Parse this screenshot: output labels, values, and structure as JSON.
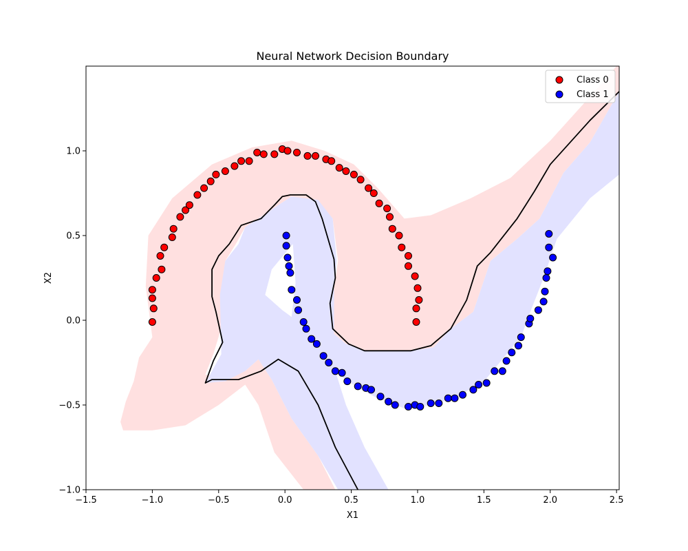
{
  "chart_data": {
    "type": "scatter",
    "title": "Neural Network Decision Boundary",
    "xlabel": "X1",
    "ylabel": "X2",
    "xlim": [
      -1.5,
      2.52
    ],
    "ylim": [
      -1.0,
      1.5
    ],
    "x_ticks": [
      -1.5,
      -1.0,
      -0.5,
      0.0,
      0.5,
      1.0,
      1.5,
      2.0,
      2.5
    ],
    "y_ticks": [
      -1.0,
      -0.5,
      0.0,
      0.5,
      1.0
    ],
    "x_tick_labels": [
      "−1.5",
      "−1.0",
      "−0.5",
      "0.0",
      "0.5",
      "1.0",
      "1.5",
      "2.0",
      "2.5"
    ],
    "y_tick_labels": [
      "−1.0",
      "−0.5",
      "0.0",
      "0.5",
      "1.0"
    ],
    "grid": false,
    "legend_position": "top-right",
    "series": [
      {
        "name": "Class 0",
        "color": "#ff0000",
        "points": [
          [
            -1.0,
            -0.01
          ],
          [
            -0.99,
            0.07
          ],
          [
            -1.0,
            0.13
          ],
          [
            -1.0,
            0.18
          ],
          [
            -0.93,
            0.3
          ],
          [
            -0.97,
            0.25
          ],
          [
            -0.94,
            0.38
          ],
          [
            -0.91,
            0.43
          ],
          [
            -0.85,
            0.49
          ],
          [
            -0.84,
            0.54
          ],
          [
            -0.79,
            0.61
          ],
          [
            -0.75,
            0.65
          ],
          [
            -0.72,
            0.68
          ],
          [
            -0.66,
            0.74
          ],
          [
            -0.61,
            0.78
          ],
          [
            -0.56,
            0.82
          ],
          [
            -0.52,
            0.86
          ],
          [
            -0.45,
            0.88
          ],
          [
            -0.38,
            0.91
          ],
          [
            -0.33,
            0.94
          ],
          [
            -0.27,
            0.94
          ],
          [
            -0.21,
            0.99
          ],
          [
            -0.16,
            0.98
          ],
          [
            -0.08,
            0.98
          ],
          [
            -0.02,
            1.01
          ],
          [
            0.02,
            1.0
          ],
          [
            0.09,
            0.99
          ],
          [
            0.17,
            0.97
          ],
          [
            0.23,
            0.97
          ],
          [
            0.31,
            0.95
          ],
          [
            0.35,
            0.94
          ],
          [
            0.41,
            0.9
          ],
          [
            0.46,
            0.88
          ],
          [
            0.52,
            0.86
          ],
          [
            0.57,
            0.83
          ],
          [
            0.63,
            0.78
          ],
          [
            0.67,
            0.75
          ],
          [
            0.71,
            0.69
          ],
          [
            0.77,
            0.66
          ],
          [
            0.79,
            0.61
          ],
          [
            0.81,
            0.54
          ],
          [
            0.86,
            0.5
          ],
          [
            0.88,
            0.43
          ],
          [
            0.93,
            0.38
          ],
          [
            0.93,
            0.32
          ],
          [
            0.98,
            0.26
          ],
          [
            1.0,
            0.19
          ],
          [
            1.01,
            0.12
          ],
          [
            0.99,
            0.07
          ],
          [
            0.99,
            -0.01
          ]
        ]
      },
      {
        "name": "Class 1",
        "color": "#0000ff",
        "points": [
          [
            0.01,
            0.5
          ],
          [
            0.01,
            0.44
          ],
          [
            0.02,
            0.37
          ],
          [
            0.03,
            0.32
          ],
          [
            0.04,
            0.28
          ],
          [
            0.05,
            0.18
          ],
          [
            0.09,
            0.12
          ],
          [
            0.1,
            0.06
          ],
          [
            0.14,
            -0.01
          ],
          [
            0.16,
            -0.05
          ],
          [
            0.2,
            -0.11
          ],
          [
            0.24,
            -0.14
          ],
          [
            0.29,
            -0.21
          ],
          [
            0.33,
            -0.25
          ],
          [
            0.38,
            -0.3
          ],
          [
            0.43,
            -0.31
          ],
          [
            0.47,
            -0.36
          ],
          [
            0.55,
            -0.39
          ],
          [
            0.61,
            -0.4
          ],
          [
            0.65,
            -0.41
          ],
          [
            0.72,
            -0.45
          ],
          [
            0.78,
            -0.48
          ],
          [
            0.83,
            -0.5
          ],
          [
            0.93,
            -0.51
          ],
          [
            0.98,
            -0.5
          ],
          [
            1.02,
            -0.51
          ],
          [
            1.1,
            -0.49
          ],
          [
            1.16,
            -0.49
          ],
          [
            1.23,
            -0.46
          ],
          [
            1.28,
            -0.46
          ],
          [
            1.34,
            -0.44
          ],
          [
            1.42,
            -0.41
          ],
          [
            1.46,
            -0.38
          ],
          [
            1.52,
            -0.37
          ],
          [
            1.58,
            -0.3
          ],
          [
            1.64,
            -0.3
          ],
          [
            1.67,
            -0.24
          ],
          [
            1.71,
            -0.19
          ],
          [
            1.76,
            -0.15
          ],
          [
            1.78,
            -0.1
          ],
          [
            1.84,
            -0.02
          ],
          [
            1.85,
            0.01
          ],
          [
            1.91,
            0.06
          ],
          [
            1.95,
            0.11
          ],
          [
            1.96,
            0.17
          ],
          [
            1.97,
            0.25
          ],
          [
            1.98,
            0.29
          ],
          [
            2.02,
            0.37
          ],
          [
            1.99,
            0.43
          ],
          [
            1.99,
            0.51
          ]
        ]
      }
    ],
    "regions": {
      "class0_color": "#ffe0e0",
      "class1_color": "#e2e2ff",
      "class0_region": [
        [
          -1.22,
          -0.65
        ],
        [
          -1.24,
          -0.6
        ],
        [
          -1.2,
          -0.48
        ],
        [
          -1.14,
          -0.36
        ],
        [
          -1.1,
          -0.22
        ],
        [
          -1.0,
          -0.1
        ],
        [
          -1.05,
          0.2
        ],
        [
          -1.03,
          0.5
        ],
        [
          -0.85,
          0.72
        ],
        [
          -0.55,
          0.92
        ],
        [
          -0.25,
          1.02
        ],
        [
          0.05,
          1.06
        ],
        [
          0.3,
          1.0
        ],
        [
          0.52,
          0.92
        ],
        [
          0.7,
          0.78
        ],
        [
          0.9,
          0.6
        ],
        [
          1.1,
          0.62
        ],
        [
          1.4,
          0.72
        ],
        [
          1.7,
          0.84
        ],
        [
          2.0,
          1.06
        ],
        [
          2.3,
          1.32
        ],
        [
          2.5,
          1.5
        ],
        [
          2.52,
          1.5
        ],
        [
          2.52,
          1.35
        ],
        [
          2.3,
          1.05
        ],
        [
          2.1,
          0.87
        ],
        [
          1.92,
          0.6
        ],
        [
          1.75,
          0.48
        ],
        [
          1.55,
          0.35
        ],
        [
          1.42,
          0.05
        ],
        [
          1.25,
          -0.05
        ],
        [
          1.12,
          -0.16
        ],
        [
          0.95,
          -0.18
        ],
        [
          0.6,
          -0.18
        ],
        [
          0.46,
          -0.14
        ],
        [
          0.37,
          -0.08
        ],
        [
          0.37,
          0.2
        ],
        [
          0.4,
          0.35
        ],
        [
          0.36,
          0.6
        ],
        [
          0.25,
          0.7
        ],
        [
          0.05,
          0.73
        ],
        [
          -0.05,
          0.68
        ],
        [
          -0.2,
          0.6
        ],
        [
          -0.3,
          0.55
        ],
        [
          -0.37,
          0.45
        ],
        [
          -0.45,
          0.35
        ],
        [
          -0.47,
          0.15
        ],
        [
          -0.47,
          -0.02
        ],
        [
          -0.54,
          -0.2
        ],
        [
          -0.6,
          -0.32
        ],
        [
          -0.45,
          -0.34
        ],
        [
          -0.3,
          -0.3
        ],
        [
          -0.2,
          -0.23
        ],
        [
          -0.1,
          -0.35
        ],
        [
          0.05,
          -0.58
        ],
        [
          0.25,
          -0.8
        ],
        [
          0.38,
          -1.0
        ],
        [
          0.14,
          -1.0
        ],
        [
          -0.08,
          -0.78
        ],
        [
          -0.2,
          -0.5
        ],
        [
          -0.3,
          -0.38
        ],
        [
          -0.5,
          -0.5
        ],
        [
          -0.75,
          -0.62
        ],
        [
          -1.0,
          -0.65
        ]
      ],
      "class1_region": [
        [
          -0.6,
          -0.37
        ],
        [
          -0.55,
          -0.3
        ],
        [
          -0.48,
          -0.2
        ],
        [
          -0.49,
          0.15
        ],
        [
          -0.45,
          0.35
        ],
        [
          -0.35,
          0.45
        ],
        [
          -0.3,
          0.55
        ],
        [
          -0.2,
          0.6
        ],
        [
          -0.05,
          0.68
        ],
        [
          0.05,
          0.73
        ],
        [
          0.25,
          0.71
        ],
        [
          0.36,
          0.6
        ],
        [
          0.39,
          0.35
        ],
        [
          0.37,
          0.2
        ],
        [
          0.37,
          -0.08
        ],
        [
          0.46,
          -0.14
        ],
        [
          0.6,
          -0.18
        ],
        [
          0.95,
          -0.18
        ],
        [
          1.12,
          -0.16
        ],
        [
          1.25,
          -0.05
        ],
        [
          1.42,
          0.05
        ],
        [
          1.55,
          0.35
        ],
        [
          1.75,
          0.48
        ],
        [
          1.92,
          0.6
        ],
        [
          2.1,
          0.87
        ],
        [
          2.3,
          1.05
        ],
        [
          2.52,
          1.35
        ],
        [
          2.52,
          0.86
        ],
        [
          2.3,
          0.72
        ],
        [
          2.05,
          0.48
        ],
        [
          1.95,
          0.25
        ],
        [
          1.85,
          0.05
        ],
        [
          1.78,
          -0.1
        ],
        [
          1.65,
          -0.22
        ],
        [
          1.5,
          -0.36
        ],
        [
          1.3,
          -0.45
        ],
        [
          1.1,
          -0.5
        ],
        [
          0.9,
          -0.52
        ],
        [
          0.7,
          -0.46
        ],
        [
          0.55,
          -0.4
        ],
        [
          0.44,
          -0.34
        ],
        [
          0.38,
          -0.3
        ],
        [
          0.46,
          -0.5
        ],
        [
          0.6,
          -0.75
        ],
        [
          0.78,
          -1.0
        ],
        [
          0.4,
          -1.0
        ],
        [
          0.25,
          -0.8
        ],
        [
          0.05,
          -0.58
        ],
        [
          -0.1,
          -0.35
        ],
        [
          -0.2,
          -0.23
        ],
        [
          -0.3,
          -0.3
        ],
        [
          -0.45,
          -0.36
        ]
      ],
      "white_gap": [
        [
          -0.1,
          0.3
        ],
        [
          0.06,
          0.45
        ],
        [
          0.08,
          0.22
        ],
        [
          0.05,
          0.02
        ],
        [
          -0.02,
          0.06
        ],
        [
          -0.15,
          0.15
        ]
      ],
      "boundary": [
        [
          0.55,
          -1.0
        ],
        [
          0.38,
          -0.75
        ],
        [
          0.25,
          -0.5
        ],
        [
          0.1,
          -0.3
        ],
        [
          -0.05,
          -0.23
        ],
        [
          -0.18,
          -0.3
        ],
        [
          -0.35,
          -0.35
        ],
        [
          -0.55,
          -0.35
        ],
        [
          -0.6,
          -0.37
        ],
        [
          -0.54,
          -0.24
        ],
        [
          -0.47,
          -0.13
        ],
        [
          -0.52,
          0.05
        ],
        [
          -0.55,
          0.14
        ],
        [
          -0.55,
          0.3
        ],
        [
          -0.5,
          0.38
        ],
        [
          -0.42,
          0.45
        ],
        [
          -0.33,
          0.56
        ],
        [
          -0.18,
          0.6
        ],
        [
          -0.08,
          0.68
        ],
        [
          -0.02,
          0.73
        ],
        [
          0.04,
          0.74
        ],
        [
          0.16,
          0.74
        ],
        [
          0.23,
          0.7
        ],
        [
          0.28,
          0.6
        ],
        [
          0.37,
          0.36
        ],
        [
          0.38,
          0.25
        ],
        [
          0.34,
          0.1
        ],
        [
          0.36,
          -0.05
        ],
        [
          0.48,
          -0.14
        ],
        [
          0.6,
          -0.18
        ],
        [
          0.95,
          -0.18
        ],
        [
          1.1,
          -0.15
        ],
        [
          1.25,
          -0.05
        ],
        [
          1.37,
          0.12
        ],
        [
          1.45,
          0.32
        ],
        [
          1.55,
          0.4
        ],
        [
          1.75,
          0.6
        ],
        [
          1.88,
          0.76
        ],
        [
          2.0,
          0.92
        ],
        [
          2.15,
          1.05
        ],
        [
          2.3,
          1.18
        ],
        [
          2.52,
          1.35
        ]
      ]
    }
  }
}
